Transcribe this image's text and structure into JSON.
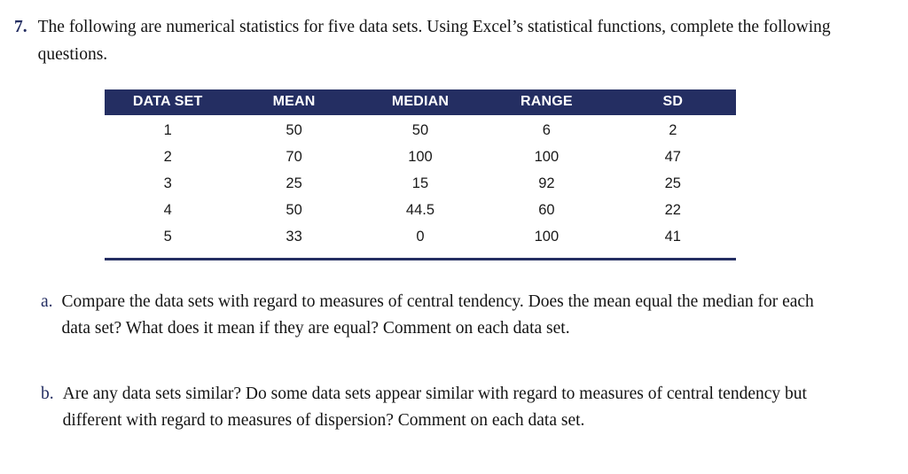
{
  "question": {
    "number": "7.",
    "text": "The following are numerical statistics for five data sets. Using Excel’s statistical functions, complete the following questions."
  },
  "table": {
    "headers": [
      "DATA SET",
      "MEAN",
      "MEDIAN",
      "RANGE",
      "SD"
    ],
    "rows": [
      [
        "1",
        "50",
        "50",
        "6",
        "2"
      ],
      [
        "2",
        "70",
        "100",
        "100",
        "47"
      ],
      [
        "3",
        "25",
        "15",
        "92",
        "25"
      ],
      [
        "4",
        "50",
        "44.5",
        "60",
        "22"
      ],
      [
        "5",
        "33",
        "0",
        "100",
        "41"
      ]
    ]
  },
  "parts": [
    {
      "label": "a.",
      "text": "Compare the data sets with regard to measures of central tendency. Does the mean equal the median for each data set? What does it mean if they are equal? Comment on each data set."
    },
    {
      "label": "b.",
      "text": "Are any data sets similar? Do some data sets appear similar with regard to measures of central tendency but different with regard to measures of dispersion? Comment on each data set."
    }
  ],
  "colors": {
    "header_bg": "#242e62",
    "accent": "#242e62",
    "text": "#141414",
    "page_bg": "#ffffff"
  }
}
